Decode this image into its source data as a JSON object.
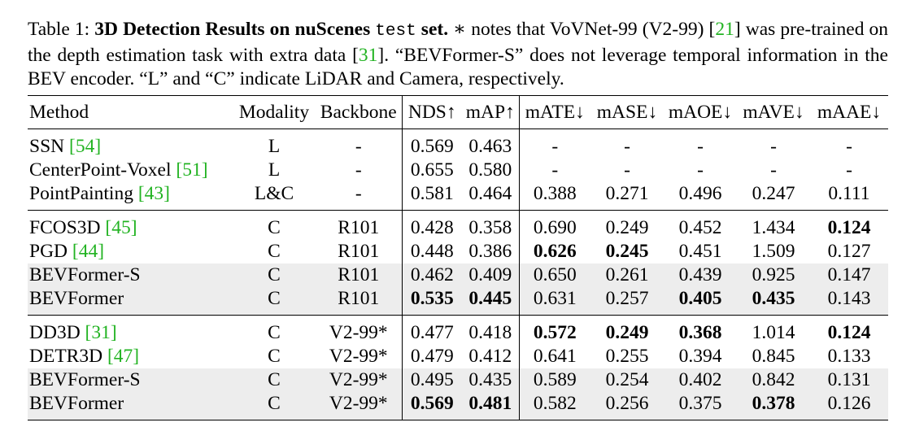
{
  "caption": {
    "label": "Table 1:",
    "title_a": "3D Detection Results on nuScenes",
    "title_mono": "test",
    "title_b": "set.",
    "text_1": "∗ notes that VoVNet-99 (V2-99) [",
    "cite_1": "21",
    "text_2": "] was pre-trained on the depth estimation task with extra data [",
    "cite_2": "31",
    "text_3": "]. “BEVFormer-S” does not leverage temporal information in the BEV encoder. “L” and “C” indicate LiDAR and Camera, respectively."
  },
  "table": {
    "headers": [
      "Method",
      "Modality",
      "Backbone",
      "NDS↑",
      "mAP↑",
      "mATE↓",
      "mASE↓",
      "mAOE↓",
      "mAVE↓",
      "mAAE↓"
    ],
    "groups": [
      {
        "rows": [
          {
            "method": "SSN ",
            "cite": "[54]",
            "modality": "L",
            "backbone": "-",
            "nds": "0.569",
            "map": "0.463",
            "mate": "-",
            "mase": "-",
            "maoe": "-",
            "mave": "-",
            "maae": "-"
          },
          {
            "method": "CenterPoint-Voxel ",
            "cite": "[51]",
            "modality": "L",
            "backbone": "-",
            "nds": "0.655",
            "map": "0.580",
            "mate": "-",
            "mase": "-",
            "maoe": "-",
            "mave": "-",
            "maae": "-"
          },
          {
            "method": "PointPainting ",
            "cite": "[43]",
            "modality": "L&C",
            "backbone": "-",
            "nds": "0.581",
            "map": "0.464",
            "mate": "0.388",
            "mase": "0.271",
            "maoe": "0.496",
            "mave": "0.247",
            "maae": "0.111"
          }
        ]
      },
      {
        "rows": [
          {
            "method": "FCOS3D ",
            "cite": "[45]",
            "modality": "C",
            "backbone": "R101",
            "nds": "0.428",
            "map": "0.358",
            "mate": "0.690",
            "mase": "0.249",
            "maoe": "0.452",
            "mave": "1.434",
            "maae": "0.124"
          },
          {
            "method": "PGD ",
            "cite": "[44]",
            "modality": "C",
            "backbone": "R101",
            "nds": "0.448",
            "map": "0.386",
            "mate": "0.626",
            "mase": "0.245",
            "maoe": "0.451",
            "mave": "1.509",
            "maae": "0.127"
          },
          {
            "method": "BEVFormer-S",
            "cite": "",
            "modality": "C",
            "backbone": "R101",
            "nds": "0.462",
            "map": "0.409",
            "mate": "0.650",
            "mase": "0.261",
            "maoe": "0.439",
            "mave": "0.925",
            "maae": "0.147"
          },
          {
            "method": "BEVFormer",
            "cite": "",
            "modality": "C",
            "backbone": "R101",
            "nds": "0.535",
            "map": "0.445",
            "mate": "0.631",
            "mase": "0.257",
            "maoe": "0.405",
            "mave": "0.435",
            "maae": "0.143"
          }
        ]
      },
      {
        "rows": [
          {
            "method": "DD3D ",
            "cite": "[31]",
            "modality": "C",
            "backbone": "V2-99*",
            "nds": "0.477",
            "map": "0.418",
            "mate": "0.572",
            "mase": "0.249",
            "maoe": "0.368",
            "mave": "1.014",
            "maae": "0.124"
          },
          {
            "method": "DETR3D ",
            "cite": "[47]",
            "modality": "C",
            "backbone": "V2-99*",
            "nds": "0.479",
            "map": "0.412",
            "mate": "0.641",
            "mase": "0.255",
            "maoe": "0.394",
            "mave": "0.845",
            "maae": "0.133"
          },
          {
            "method": "BEVFormer-S",
            "cite": "",
            "modality": "C",
            "backbone": "V2-99*",
            "nds": "0.495",
            "map": "0.435",
            "mate": "0.589",
            "mase": "0.254",
            "maoe": "0.402",
            "mave": "0.842",
            "maae": "0.131"
          },
          {
            "method": "BEVFormer",
            "cite": "",
            "modality": "C",
            "backbone": "V2-99*",
            "nds": "0.569",
            "map": "0.481",
            "mate": "0.582",
            "mase": "0.256",
            "maoe": "0.375",
            "mave": "0.378",
            "maae": "0.126"
          }
        ]
      }
    ]
  },
  "styles": {
    "citation_color": "#22b322",
    "row_shade_color": "#ededed"
  }
}
